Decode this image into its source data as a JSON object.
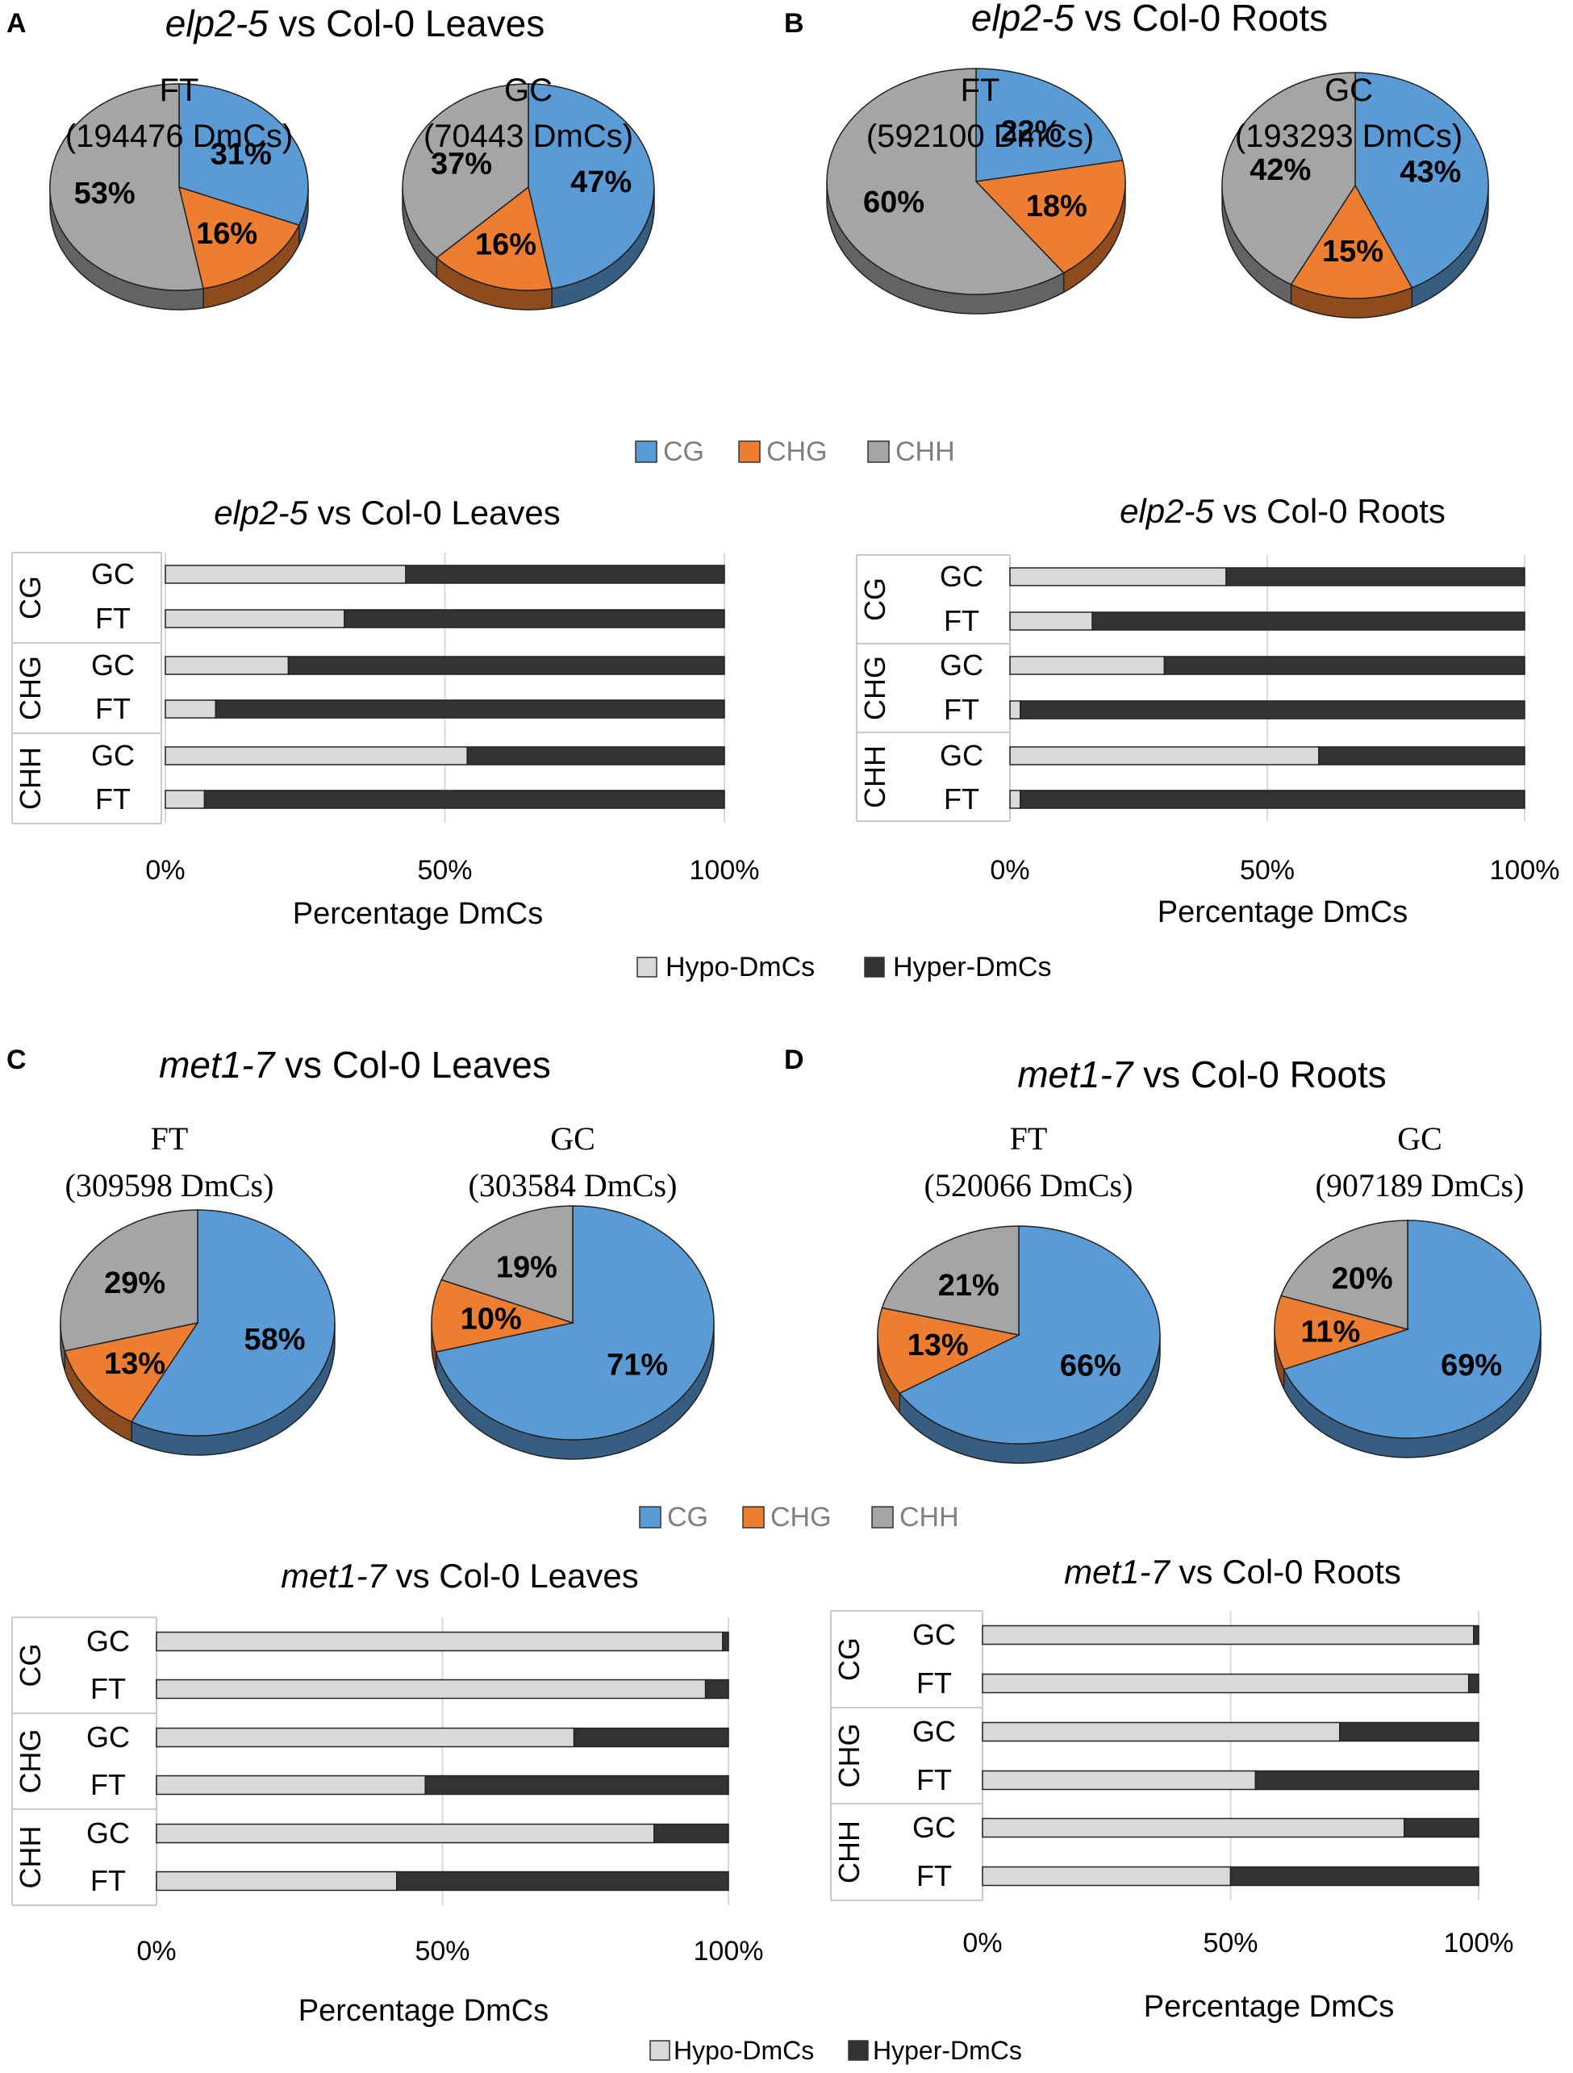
{
  "colors": {
    "CG": "#5b9bd5",
    "CHG": "#ed7d31",
    "CHH": "#a5a5a5",
    "hypo": "#d9d9d9",
    "hyper": "#333333"
  },
  "panels": [
    {
      "letter": "A",
      "title": {
        "italic": "elp2-5",
        "rest": " vs Col-0 Leaves"
      }
    },
    {
      "letter": "B",
      "title": {
        "italic": "elp2-5",
        "rest": " vs Col-0 Roots"
      }
    },
    {
      "letter": "C",
      "title": {
        "italic": "met1-7",
        "rest": " vs Col-0 Leaves"
      }
    },
    {
      "letter": "D",
      "title": {
        "italic": "met1-7",
        "rest": " vs Col-0 Roots"
      }
    }
  ],
  "pie_legends": [
    {
      "items": [
        "CG",
        "CHG",
        "CHH"
      ]
    },
    {
      "items": [
        "CG",
        "CHG",
        "CHH"
      ]
    }
  ],
  "bar_legends": [
    {
      "items": [
        "Hypo-DmCs",
        "Hyper-DmCs"
      ]
    },
    {
      "items": [
        "Hypo-DmCs",
        "Hyper-DmCs"
      ]
    }
  ],
  "chart_data": [
    {
      "type": "pie",
      "panel": "A",
      "title": "FT",
      "subtitle": "(194476 DmCs)",
      "labels": [
        "CG",
        "CHG",
        "CHH"
      ],
      "values": [
        31,
        16,
        53
      ],
      "data_labels": [
        "31%",
        "16%",
        "53%"
      ]
    },
    {
      "type": "pie",
      "panel": "A",
      "title": "GC",
      "subtitle": "(70443 DmCs)",
      "labels": [
        "CG",
        "CHG",
        "CHH"
      ],
      "values": [
        47,
        16,
        37
      ],
      "data_labels": [
        "47%",
        "16%",
        "37%"
      ]
    },
    {
      "type": "pie",
      "panel": "B",
      "title": "FT",
      "subtitle": "(592100 DmCs)",
      "labels": [
        "CG",
        "CHG",
        "CHH"
      ],
      "values": [
        22,
        18,
        60
      ],
      "data_labels": [
        "22%",
        "18%",
        "60%"
      ]
    },
    {
      "type": "pie",
      "panel": "B",
      "title": "GC",
      "subtitle": "(193293 DmCs)",
      "labels": [
        "CG",
        "CHG",
        "CHH"
      ],
      "values": [
        43,
        15,
        42
      ],
      "data_labels": [
        "43%",
        "15%",
        "42%"
      ]
    },
    {
      "type": "pie",
      "panel": "C",
      "title": "FT",
      "subtitle": "(309598 DmCs)",
      "labels": [
        "CG",
        "CHG",
        "CHH"
      ],
      "values": [
        58,
        13,
        29
      ],
      "data_labels": [
        "58%",
        "13%",
        "29%"
      ]
    },
    {
      "type": "pie",
      "panel": "C",
      "title": "GC",
      "subtitle": "(303584 DmCs)",
      "labels": [
        "CG",
        "CHG",
        "CHH"
      ],
      "values": [
        71,
        10,
        19
      ],
      "data_labels": [
        "71%",
        "10%",
        "19%"
      ]
    },
    {
      "type": "pie",
      "panel": "D",
      "title": "FT",
      "subtitle": "(520066 DmCs)",
      "labels": [
        "CG",
        "CHG",
        "CHH"
      ],
      "values": [
        66,
        13,
        21
      ],
      "data_labels": [
        "66%",
        "13%",
        "21%"
      ]
    },
    {
      "type": "pie",
      "panel": "D",
      "title": "GC",
      "subtitle": "(907189 DmCs)",
      "labels": [
        "CG",
        "CHG",
        "CHH"
      ],
      "values": [
        69,
        11,
        20
      ],
      "data_labels": [
        "69%",
        "11%",
        "20%"
      ]
    },
    {
      "type": "bar",
      "orientation": "horizontal",
      "stacked": "percent",
      "panel": "A",
      "title": {
        "italic": "elp2-5",
        "rest": " vs Col-0 Leaves"
      },
      "groups": [
        "CG",
        "CHG",
        "CHH"
      ],
      "categories": [
        "GC",
        "FT"
      ],
      "series": [
        {
          "name": "Hypo-DmCs",
          "values": [
            [
              43,
              32
            ],
            [
              22,
              9
            ],
            [
              54,
              7
            ]
          ]
        },
        {
          "name": "Hyper-DmCs",
          "values": [
            [
              57,
              68
            ],
            [
              78,
              91
            ],
            [
              46,
              93
            ]
          ]
        }
      ],
      "xlabel": "Percentage DmCs",
      "xticks": [
        "0%",
        "50%",
        "100%"
      ],
      "xlim": [
        0,
        100
      ]
    },
    {
      "type": "bar",
      "orientation": "horizontal",
      "stacked": "percent",
      "panel": "B",
      "title": {
        "italic": "elp2-5",
        "rest": " vs Col-0 Roots"
      },
      "groups": [
        "CG",
        "CHG",
        "CHH"
      ],
      "categories": [
        "GC",
        "FT"
      ],
      "series": [
        {
          "name": "Hypo-DmCs",
          "values": [
            [
              42,
              16
            ],
            [
              30,
              2
            ],
            [
              60,
              2
            ]
          ]
        },
        {
          "name": "Hyper-DmCs",
          "values": [
            [
              58,
              84
            ],
            [
              70,
              98
            ],
            [
              40,
              98
            ]
          ]
        }
      ],
      "xlabel": "Percentage DmCs",
      "xticks": [
        "0%",
        "50%",
        "100%"
      ],
      "xlim": [
        0,
        100
      ]
    },
    {
      "type": "bar",
      "orientation": "horizontal",
      "stacked": "percent",
      "panel": "C",
      "title": {
        "italic": "met1-7",
        "rest": " vs Col-0 Leaves"
      },
      "groups": [
        "CG",
        "CHG",
        "CHH"
      ],
      "categories": [
        "GC",
        "FT"
      ],
      "series": [
        {
          "name": "Hypo-DmCs",
          "values": [
            [
              99,
              96
            ],
            [
              73,
              47
            ],
            [
              87,
              42
            ]
          ]
        },
        {
          "name": "Hyper-DmCs",
          "values": [
            [
              1,
              4
            ],
            [
              27,
              53
            ],
            [
              13,
              58
            ]
          ]
        }
      ],
      "xlabel": "Percentage DmCs",
      "xticks": [
        "0%",
        "50%",
        "100%"
      ],
      "xlim": [
        0,
        100
      ]
    },
    {
      "type": "bar",
      "orientation": "horizontal",
      "stacked": "percent",
      "panel": "D",
      "title": {
        "italic": "met1-7",
        "rest": " vs Col-0 Roots"
      },
      "groups": [
        "CG",
        "CHG",
        "CHH"
      ],
      "categories": [
        "GC",
        "FT"
      ],
      "series": [
        {
          "name": "Hypo-DmCs",
          "values": [
            [
              99,
              98
            ],
            [
              72,
              55
            ],
            [
              85,
              50
            ]
          ]
        },
        {
          "name": "Hyper-DmCs",
          "values": [
            [
              1,
              2
            ],
            [
              28,
              45
            ],
            [
              15,
              50
            ]
          ]
        }
      ],
      "xlabel": "Percentage DmCs",
      "xticks": [
        "0%",
        "50%",
        "100%"
      ],
      "xlim": [
        0,
        100
      ]
    }
  ]
}
